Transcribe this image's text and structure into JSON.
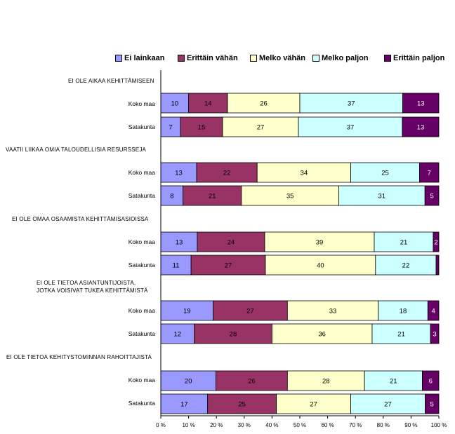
{
  "colors": {
    "series": [
      "#9999ff",
      "#993366",
      "#ffffcc",
      "#ccffff",
      "#660066"
    ],
    "label_light": "#000000",
    "label_dark": "#ffffff",
    "bar_edge": "#000000"
  },
  "legend": [
    {
      "label": "Ei lainkaan"
    },
    {
      "label": "Erittäin vähän"
    },
    {
      "label": "Melko vähän"
    },
    {
      "label": "Melko paljon"
    },
    {
      "label": "Erittäin paljon"
    }
  ],
  "groups": [
    {
      "title_lines": [
        "EI OLE AIKAA KEHITTÄMISEEN"
      ]
    },
    {
      "title_lines": [
        "VAATII LIIKAA OMIA TALOUDELLISIA RESURSSEJA"
      ]
    },
    {
      "title_lines": [
        "EI OLE OMAA OSAAMISTA KEHITTÄMISASIOISSA"
      ]
    },
    {
      "title_lines": [
        "EI OLE TIETOA ASIANTUNTIJOISTA,",
        "JOTKA VOISIVAT TUKEA KEHITTÄMISTÄ"
      ]
    },
    {
      "title_lines": [
        "EI OLE TIETOA KEHITYSTOMINNAN RAHOITTAJISTA"
      ]
    }
  ],
  "chart_data": {
    "type": "bar",
    "orientation": "horizontal",
    "stacked": "percent",
    "series_names": [
      "Ei lainkaan",
      "Erittäin vähän",
      "Melko vähän",
      "Melko paljon",
      "Erittäin paljon"
    ],
    "xlim": [
      0,
      100
    ],
    "x_ticks": [
      "0 %",
      "10 %",
      "20 %",
      "30 %",
      "40 %",
      "50 %",
      "60 %",
      "70 %",
      "80 %",
      "90 %",
      "100 %"
    ],
    "legend_position": "top",
    "rows": [
      {
        "group": 0,
        "label": "Koko maa",
        "values": [
          10,
          14,
          26,
          37,
          13
        ]
      },
      {
        "group": 0,
        "label": "Satakunta",
        "values": [
          7,
          15,
          27,
          37,
          13
        ]
      },
      {
        "group": 1,
        "label": "Koko maa",
        "values": [
          13,
          22,
          34,
          25,
          7
        ]
      },
      {
        "group": 1,
        "label": "Satakunta",
        "values": [
          8,
          21,
          35,
          31,
          5
        ]
      },
      {
        "group": 2,
        "label": "Koko maa",
        "values": [
          13,
          24,
          39,
          21,
          2
        ]
      },
      {
        "group": 2,
        "label": "Satakunta",
        "values": [
          11,
          27,
          40,
          22,
          1
        ]
      },
      {
        "group": 3,
        "label": "Koko maa",
        "values": [
          19,
          27,
          33,
          18,
          4
        ]
      },
      {
        "group": 3,
        "label": "Satakunta",
        "values": [
          12,
          28,
          36,
          21,
          3
        ]
      },
      {
        "group": 4,
        "label": "Koko maa",
        "values": [
          20,
          26,
          28,
          21,
          6
        ]
      },
      {
        "group": 4,
        "label": "Satakunta",
        "values": [
          17,
          25,
          27,
          27,
          5
        ]
      }
    ],
    "hidden_value_labels": [
      {
        "row": 5,
        "series": 4
      }
    ]
  }
}
